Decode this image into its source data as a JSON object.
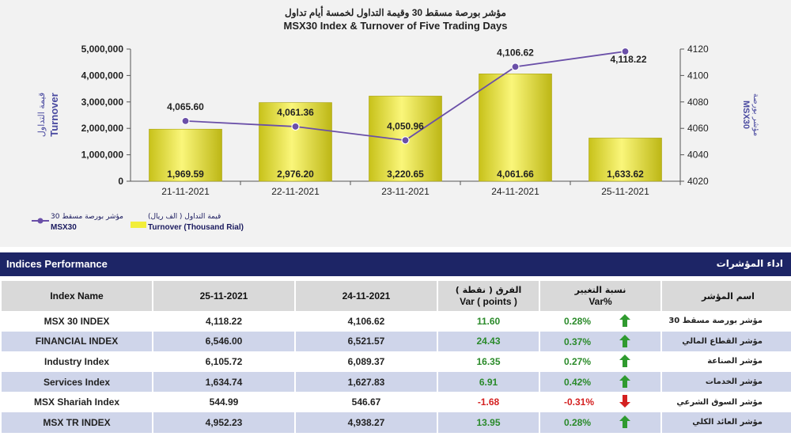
{
  "chart_data": {
    "type": "bar+line",
    "title_ar": "مؤشر بورصة مسقط 30 وقيمة التداول لخمسة أيام تداول",
    "title_en": "MSX30 Index & Turnover of Five Trading Days",
    "categories": [
      "21-11-2021",
      "22-11-2021",
      "23-11-2021",
      "24-11-2021",
      "25-11-2021"
    ],
    "bar_series": {
      "name": "Turnover (Thousand Rial)",
      "name_ar": "قيمة التداول ( الف ريال)",
      "values": [
        1969.59,
        2976.2,
        3220.65,
        4061.66,
        1633.62
      ],
      "labels": [
        "1,969.59",
        "2,976.20",
        "3,220.65",
        "4,061.66",
        "1,633.62"
      ],
      "color": "#f2ee3a"
    },
    "line_series": {
      "name": "MSX30",
      "name_ar": "مؤشر بورصة مسقط 30",
      "values": [
        4065.6,
        4061.36,
        4050.96,
        4106.62,
        4118.22
      ],
      "labels": [
        "4,065.60",
        "4,061.36",
        "4,050.96",
        "4,106.62",
        "4,118.22"
      ],
      "color": "#6a4fa8"
    },
    "left_axis": {
      "label_en": "Turnover",
      "label_ar": "قيمة التداول",
      "ticks": [
        "5,000,000",
        "4,000,000",
        "3,000,000",
        "2,000,000",
        "1,000,000",
        "0"
      ],
      "range": [
        0,
        5000000
      ]
    },
    "right_axis": {
      "label_en": "MSX30",
      "label_ar": "مؤشر بورصة",
      "ticks": [
        "4120",
        "4100",
        "4080",
        "4060",
        "4040",
        "4020"
      ],
      "range": [
        4020,
        4120
      ]
    }
  },
  "legend": {
    "line_ar": "مؤشر بورصة مسقط 30",
    "line_en": "MSX30",
    "bar_ar": "قيمة التداول ( الف ريال)",
    "bar_en": "Turnover (Thousand Rial)"
  },
  "section": {
    "title_en": "Indices Performance",
    "title_ar": "اداء المؤشرات"
  },
  "table": {
    "headers": {
      "name": "Index Name",
      "d1": "25-11-2021",
      "d2": "24-11-2021",
      "diff_ar": "الفرق ( نقطة )",
      "diff_en": "Var ( points )",
      "var_ar": "نسبة التغيير",
      "var_en": "Var%",
      "ar_name": "اسم المؤشر"
    },
    "rows": [
      {
        "name": "MSX 30 INDEX",
        "v1": "4,118.22",
        "v2": "4,106.62",
        "diff": "11.60",
        "pct": "0.28%",
        "dir": "up",
        "ar": "مؤشر بورصة مسقط 30"
      },
      {
        "name": "FINANCIAL INDEX",
        "v1": "6,546.00",
        "v2": "6,521.57",
        "diff": "24.43",
        "pct": "0.37%",
        "dir": "up",
        "ar": "مؤشر القطاع المالي"
      },
      {
        "name": "Industry Index",
        "v1": "6,105.72",
        "v2": "6,089.37",
        "diff": "16.35",
        "pct": "0.27%",
        "dir": "up",
        "ar": "مؤشر الصناعة"
      },
      {
        "name": "Services Index",
        "v1": "1,634.74",
        "v2": "1,627.83",
        "diff": "6.91",
        "pct": "0.42%",
        "dir": "up",
        "ar": "مؤشر الخدمات"
      },
      {
        "name": "MSX Shariah Index",
        "v1": "544.99",
        "v2": "546.67",
        "diff": "-1.68",
        "pct": "-0.31%",
        "dir": "down",
        "ar": "مؤشر السوق الشرعي"
      },
      {
        "name": "MSX TR INDEX",
        "v1": "4,952.23",
        "v2": "4,938.27",
        "diff": "13.95",
        "pct": "0.28%",
        "dir": "up",
        "ar": "مؤشر العائد الكلي"
      }
    ]
  }
}
